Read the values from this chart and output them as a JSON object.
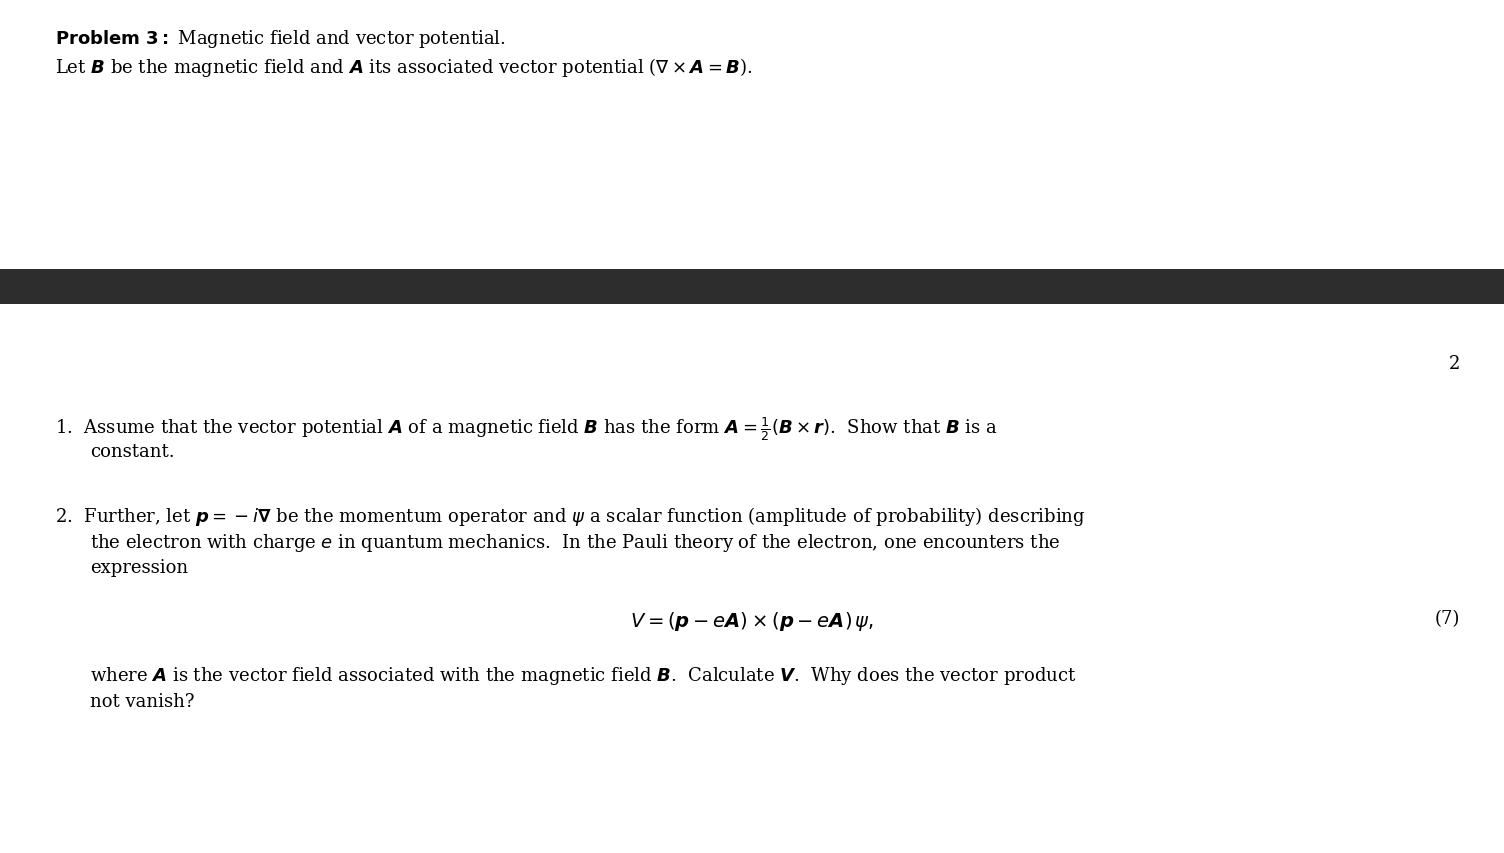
{
  "background_color": "#ffffff",
  "dark_bar_color": "#2d2d2d",
  "page_number": "2",
  "font_size_main": 13.0,
  "text_color": "#000000",
  "line1_bold": "Problem 3:",
  "line1_normal": " Magnetic field and vector potential.",
  "line2": "Let $B$ be the magnetic field and $\\boldsymbol{A}$ its associated vector potential ($\\nabla \\times \\boldsymbol{A} = \\boldsymbol{B}$).",
  "item1_line1": "1.  Assume that the vector potential $\\boldsymbol{A}$ of a magnetic field $\\boldsymbol{B}$ has the form $\\boldsymbol{A} = \\frac{1}{2}(\\boldsymbol{B} \\times \\boldsymbol{r})$.  Show that $\\boldsymbol{B}$ is a",
  "item1_line2": "constant.",
  "item2_line1": "2.  Further, let $\\boldsymbol{p} = -i\\boldsymbol{\\nabla}$ be the momentum operator and $\\psi$ a scalar function (amplitude of probability) describing",
  "item2_line2": "the electron with charge $e$ in quantum mechanics.  In the Pauli theory of the electron, one encounters the",
  "item2_line3": "expression",
  "equation": "$V = (\\boldsymbol{p} - e\\boldsymbol{A}) \\times (\\boldsymbol{p} - e\\boldsymbol{A})\\, \\psi,$",
  "eq_number": "(7)",
  "last_line1": "where $\\boldsymbol{A}$ is the vector field associated with the magnetic field $\\boldsymbol{B}$.  Calculate $\\boldsymbol{V}$.  Why does the vector product",
  "last_line2": "not vanish?"
}
